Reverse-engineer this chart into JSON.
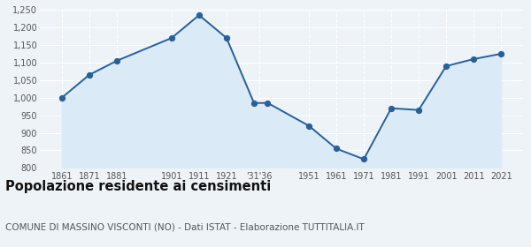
{
  "years": [
    1861,
    1871,
    1881,
    1901,
    1911,
    1921,
    1931,
    1936,
    1951,
    1961,
    1971,
    1981,
    1991,
    2001,
    2011,
    2021
  ],
  "population": [
    1000,
    1065,
    1105,
    1170,
    1235,
    1170,
    985,
    985,
    920,
    855,
    825,
    970,
    965,
    1090,
    1110,
    1125
  ],
  "ylim": [
    800,
    1250
  ],
  "ytick_step": 50,
  "line_color": "#2a6096",
  "fill_color": "#daeaf7",
  "marker_color": "#2a6096",
  "bg_color": "#eef3f8",
  "title": "Popolazione residente ai censimenti",
  "subtitle": "COMUNE DI MASSINO VISCONTI (NO) - Dati ISTAT - Elaborazione TUTTITALIA.IT",
  "title_fontsize": 10.5,
  "subtitle_fontsize": 7.5,
  "tick_label_color": "#555555",
  "grid_color": "#ffffff",
  "tick_fontsize": 7
}
